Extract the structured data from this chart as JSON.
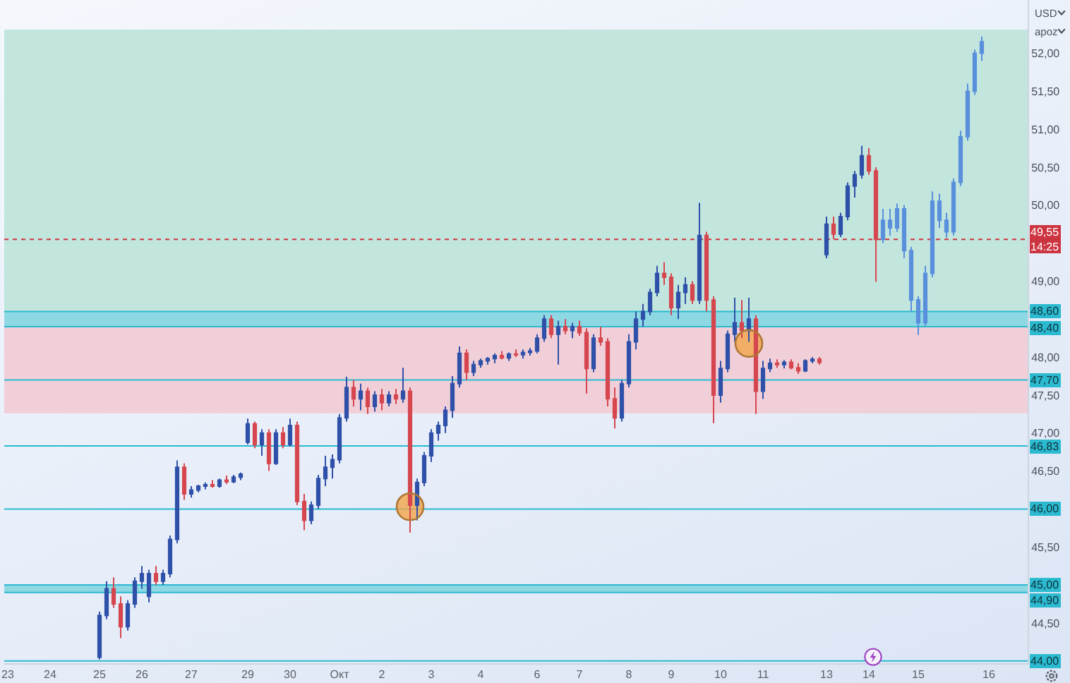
{
  "chart_data": {
    "type": "candlestick",
    "categories": [
      "23",
      null,
      null,
      null,
      null,
      null,
      "24",
      null,
      null,
      null,
      null,
      null,
      null,
      "25",
      null,
      null,
      null,
      null,
      null,
      "26",
      null,
      null,
      null,
      null,
      null,
      null,
      "27",
      null,
      null,
      null,
      null,
      null,
      null,
      null,
      "29",
      null,
      null,
      null,
      null,
      null,
      "30",
      null,
      null,
      null,
      null,
      null,
      null,
      "Окт",
      null,
      null,
      null,
      null,
      null,
      "2",
      null,
      null,
      null,
      null,
      null,
      null,
      "3",
      null,
      null,
      null,
      null,
      null,
      null,
      "4",
      null,
      null,
      null,
      null,
      null,
      null,
      null,
      "6",
      null,
      null,
      null,
      null,
      null,
      "7",
      null,
      null,
      null,
      null,
      null,
      null,
      "8",
      null,
      null,
      null,
      null,
      null,
      "9",
      null,
      null,
      null,
      null,
      null,
      null,
      "10",
      null,
      null,
      null,
      null,
      null,
      "11",
      null,
      null,
      null,
      null,
      null,
      null,
      null,
      null,
      "13",
      null,
      null,
      null,
      null,
      null,
      "14",
      null,
      null,
      null,
      null,
      null,
      null,
      "15",
      null,
      null,
      null,
      null,
      null,
      null,
      null,
      null,
      null,
      "16",
      null,
      null,
      null,
      null,
      null
    ],
    "ohlc": [
      null,
      null,
      null,
      null,
      null,
      null,
      null,
      null,
      null,
      null,
      null,
      null,
      null,
      [
        44.05,
        44.65,
        44.02,
        44.6
      ],
      [
        44.6,
        45.05,
        44.55,
        44.95
      ],
      [
        44.95,
        45.1,
        44.7,
        44.75
      ],
      [
        44.75,
        44.85,
        44.3,
        44.45
      ],
      [
        44.45,
        44.8,
        44.4,
        44.75
      ],
      [
        44.75,
        45.1,
        44.7,
        45.05
      ],
      [
        45.05,
        45.25,
        44.95,
        45.15
      ],
      [
        44.85,
        45.2,
        44.77,
        45.15
      ],
      [
        45.15,
        45.25,
        45.0,
        45.05
      ],
      [
        45.05,
        45.2,
        45.0,
        45.15
      ],
      [
        45.15,
        45.65,
        45.1,
        45.6
      ],
      [
        45.6,
        46.64,
        45.55,
        46.55
      ],
      [
        46.55,
        46.6,
        46.12,
        46.2
      ],
      [
        46.2,
        46.3,
        46.15,
        46.25
      ],
      [
        46.25,
        46.32,
        46.22,
        46.3
      ],
      [
        46.3,
        46.35,
        46.26,
        46.32
      ],
      [
        46.32,
        46.38,
        46.28,
        46.3
      ],
      [
        46.3,
        46.4,
        46.28,
        46.38
      ],
      [
        46.38,
        46.44,
        46.33,
        46.36
      ],
      [
        46.36,
        46.45,
        46.34,
        46.42
      ],
      [
        46.42,
        46.48,
        46.38,
        46.46
      ],
      [
        46.88,
        47.19,
        46.85,
        47.12
      ],
      [
        47.12,
        47.15,
        46.8,
        46.85
      ],
      [
        46.85,
        47.05,
        46.7,
        47.0
      ],
      [
        47.0,
        47.05,
        46.5,
        46.6
      ],
      [
        46.6,
        47.05,
        46.58,
        47.0
      ],
      [
        47.0,
        47.08,
        46.8,
        46.85
      ],
      [
        46.85,
        47.19,
        46.82,
        47.1
      ],
      [
        47.1,
        47.15,
        46.05,
        46.1
      ],
      [
        46.1,
        46.2,
        45.72,
        45.85
      ],
      [
        45.85,
        46.1,
        45.8,
        46.05
      ],
      [
        46.05,
        46.45,
        46.0,
        46.4
      ],
      [
        46.4,
        46.7,
        46.3,
        46.55
      ],
      [
        46.55,
        46.72,
        46.4,
        46.65
      ],
      [
        46.65,
        47.25,
        46.6,
        47.2
      ],
      [
        47.2,
        47.74,
        47.15,
        47.6
      ],
      [
        47.6,
        47.7,
        47.35,
        47.45
      ],
      [
        47.45,
        47.65,
        47.3,
        47.55
      ],
      [
        47.55,
        47.6,
        47.25,
        47.35
      ],
      [
        47.35,
        47.55,
        47.28,
        47.5
      ],
      [
        47.5,
        47.58,
        47.3,
        47.4
      ],
      [
        47.4,
        47.55,
        47.35,
        47.5
      ],
      [
        47.5,
        47.58,
        47.38,
        47.45
      ],
      [
        47.45,
        47.86,
        47.4,
        47.55
      ],
      [
        47.55,
        47.6,
        45.69,
        46.05
      ],
      [
        46.05,
        46.4,
        45.85,
        46.35
      ],
      [
        46.35,
        46.75,
        46.3,
        46.7
      ],
      [
        46.7,
        47.05,
        46.62,
        47.0
      ],
      [
        47.0,
        47.15,
        46.9,
        47.1
      ],
      [
        47.1,
        47.35,
        47.0,
        47.3
      ],
      [
        47.3,
        47.75,
        47.2,
        47.65
      ],
      [
        47.65,
        48.14,
        47.6,
        48.05
      ],
      [
        48.05,
        48.1,
        47.7,
        47.8
      ],
      [
        47.8,
        47.95,
        47.75,
        47.9
      ],
      [
        47.9,
        47.98,
        47.86,
        47.95
      ],
      [
        47.95,
        48.0,
        47.9,
        47.98
      ],
      [
        47.98,
        48.05,
        47.92,
        48.02
      ],
      [
        48.02,
        48.08,
        47.97,
        47.99
      ],
      [
        47.99,
        48.06,
        47.95,
        48.04
      ],
      [
        48.04,
        48.1,
        48.0,
        48.03
      ],
      [
        48.03,
        48.1,
        47.98,
        48.06
      ],
      [
        48.06,
        48.12,
        48.02,
        48.08
      ],
      [
        48.08,
        48.3,
        48.05,
        48.25
      ],
      [
        48.25,
        48.55,
        48.2,
        48.5
      ],
      [
        48.5,
        48.55,
        48.25,
        48.3
      ],
      [
        48.3,
        48.48,
        47.9,
        48.4
      ],
      [
        48.4,
        48.5,
        48.3,
        48.35
      ],
      [
        48.35,
        48.45,
        48.25,
        48.4
      ],
      [
        48.4,
        48.48,
        48.28,
        48.32
      ],
      [
        48.32,
        48.38,
        47.52,
        47.85
      ],
      [
        47.85,
        48.3,
        47.8,
        48.25
      ],
      [
        48.25,
        48.4,
        48.15,
        48.2
      ],
      [
        48.2,
        48.25,
        47.35,
        47.45
      ],
      [
        47.45,
        47.6,
        47.06,
        47.2
      ],
      [
        47.2,
        47.7,
        47.15,
        47.65
      ],
      [
        47.65,
        48.3,
        47.6,
        48.2
      ],
      [
        48.2,
        48.6,
        48.1,
        48.5
      ],
      [
        48.5,
        48.7,
        48.4,
        48.6
      ],
      [
        48.6,
        48.9,
        48.55,
        48.85
      ],
      [
        48.85,
        49.2,
        48.8,
        49.1
      ],
      [
        49.1,
        49.25,
        48.95,
        49.05
      ],
      [
        49.05,
        49.1,
        48.55,
        48.65
      ],
      [
        48.65,
        48.95,
        48.5,
        48.85
      ],
      [
        48.85,
        49.05,
        48.7,
        48.95
      ],
      [
        48.95,
        49.0,
        48.7,
        48.75
      ],
      [
        48.75,
        50.03,
        48.7,
        49.6
      ],
      [
        49.6,
        49.65,
        48.6,
        48.75
      ],
      [
        48.75,
        48.8,
        47.13,
        47.5
      ],
      [
        47.5,
        47.95,
        47.4,
        47.85
      ],
      [
        47.85,
        48.35,
        47.8,
        48.3
      ],
      [
        48.3,
        48.78,
        48.2,
        48.45
      ],
      [
        48.45,
        48.75,
        48.25,
        48.35
      ],
      [
        48.35,
        48.78,
        48.2,
        48.5
      ],
      [
        48.5,
        48.55,
        47.25,
        47.55
      ],
      [
        47.55,
        47.95,
        47.45,
        47.85
      ],
      [
        47.85,
        47.98,
        47.8,
        47.92
      ],
      [
        47.92,
        47.97,
        47.86,
        47.9
      ],
      [
        47.9,
        47.96,
        47.85,
        47.93
      ],
      [
        47.93,
        47.97,
        47.84,
        47.86
      ],
      [
        47.86,
        47.92,
        47.78,
        47.82
      ],
      [
        47.82,
        47.97,
        47.8,
        47.95
      ],
      [
        47.95,
        48.0,
        47.92,
        47.97
      ],
      [
        47.97,
        48.0,
        47.9,
        47.93
      ],
      [
        49.35,
        49.85,
        49.3,
        49.75
      ],
      [
        49.75,
        49.85,
        49.55,
        49.62
      ],
      [
        49.62,
        49.9,
        49.58,
        49.85
      ],
      [
        49.85,
        50.3,
        49.8,
        50.25
      ],
      [
        50.25,
        50.45,
        50.1,
        50.4
      ],
      [
        50.4,
        50.78,
        50.35,
        50.65
      ],
      [
        50.65,
        50.75,
        50.4,
        50.45
      ],
      [
        50.45,
        50.5,
        48.99,
        49.55
      ],
      [
        49.55,
        49.95,
        49.5,
        49.8
      ],
      [
        49.8,
        49.95,
        49.6,
        49.7
      ],
      [
        49.7,
        50.02,
        49.65,
        49.95
      ],
      [
        49.95,
        50.0,
        49.3,
        49.4
      ],
      [
        49.4,
        49.45,
        48.6,
        48.75
      ],
      [
        48.75,
        48.8,
        48.29,
        48.45
      ],
      [
        48.45,
        49.2,
        48.4,
        49.1
      ],
      [
        49.1,
        50.18,
        49.05,
        50.05
      ],
      [
        50.05,
        50.15,
        49.7,
        49.8
      ],
      [
        49.8,
        49.9,
        49.57,
        49.65
      ],
      [
        49.65,
        50.35,
        49.6,
        50.3
      ],
      [
        50.3,
        50.98,
        50.25,
        50.9
      ],
      [
        50.9,
        51.6,
        50.85,
        51.5
      ],
      [
        51.5,
        52.05,
        51.45,
        52.0
      ],
      [
        52.0,
        52.22,
        51.9,
        52.15
      ],
      null,
      null,
      null,
      null,
      null,
      null
    ],
    "colors": [
      null,
      null,
      null,
      null,
      null,
      null,
      null,
      null,
      null,
      null,
      null,
      null,
      null,
      "#2f50a8",
      "#2f50a8",
      "#d6464f",
      "#d6464f",
      "#2f50a8",
      "#2f50a8",
      "#2f50a8",
      "#2f50a8",
      "#d6464f",
      "#2f50a8",
      "#2f50a8",
      "#2f50a8",
      "#d6464f",
      "#2f50a8",
      "#2f50a8",
      "#2f50a8",
      "#d6464f",
      "#2f50a8",
      "#d6464f",
      "#2f50a8",
      "#2f50a8",
      "#2f50a8",
      "#d6464f",
      "#2f50a8",
      "#d6464f",
      "#2f50a8",
      "#d6464f",
      "#2f50a8",
      "#d6464f",
      "#d6464f",
      "#2f50a8",
      "#2f50a8",
      "#2f50a8",
      "#2f50a8",
      "#2f50a8",
      "#2f50a8",
      "#d6464f",
      "#2f50a8",
      "#d6464f",
      "#2f50a8",
      "#d6464f",
      "#2f50a8",
      "#d6464f",
      "#2f50a8",
      "#d6464f",
      "#2f50a8",
      "#2f50a8",
      "#2f50a8",
      "#2f50a8",
      "#2f50a8",
      "#2f50a8",
      "#2f50a8",
      "#d6464f",
      "#2f50a8",
      "#2f50a8",
      "#2f50a8",
      "#2f50a8",
      "#d6464f",
      "#2f50a8",
      "#d6464f",
      "#2f50a8",
      "#2f50a8",
      "#2f50a8",
      "#2f50a8",
      "#d6464f",
      "#2f50a8",
      "#d6464f",
      "#2f50a8",
      "#d6464f",
      "#d6464f",
      "#2f50a8",
      "#d6464f",
      "#d6464f",
      "#d6464f",
      "#2f50a8",
      "#2f50a8",
      "#2f50a8",
      "#2f50a8",
      "#2f50a8",
      "#2f50a8",
      "#d6464f",
      "#d6464f",
      "#2f50a8",
      "#2f50a8",
      "#d6464f",
      "#2f50a8",
      "#d6464f",
      "#d6464f",
      "#2f50a8",
      "#2f50a8",
      "#2f50a8",
      "#d6464f",
      "#2f50a8",
      "#d6464f",
      "#2f50a8",
      "#2f50a8",
      "#d6464f",
      "#2f50a8",
      "#d6464f",
      "#d6464f",
      "#2f50a8",
      "#2f50a8",
      "#d6464f",
      "#2f50a8",
      "#d6464f",
      "#2f50a8",
      "#2f50a8",
      "#2f50a8",
      "#2f50a8",
      "#d6464f",
      "#d6464f",
      "#5a8fdc",
      "#5a8fdc",
      "#5a8fdc",
      "#5a8fdc",
      "#5a8fdc",
      "#5a8fdc",
      "#5a8fdc",
      "#5a8fdc",
      "#5a8fdc",
      "#5a8fdc",
      "#5a8fdc",
      "#5a8fdc",
      "#5a8fdc",
      "#5a8fdc",
      "#5a8fdc",
      null,
      null,
      null,
      null,
      null,
      null
    ],
    "series": [
      {
        "type": "scatter",
        "color": "#f2a54a",
        "values": [
          null,
          null,
          null,
          null,
          null,
          null,
          null,
          null,
          null,
          null,
          null,
          null,
          null,
          null,
          null,
          null,
          null,
          null,
          null,
          null,
          null,
          null,
          null,
          null,
          null,
          null,
          null,
          null,
          null,
          null,
          null,
          null,
          null,
          null,
          null,
          null,
          null,
          null,
          null,
          null,
          null,
          null,
          null,
          null,
          null,
          null,
          null,
          null,
          null,
          null,
          null,
          null,
          null,
          null,
          null,
          null,
          null,
          46.03,
          null,
          null,
          null,
          null,
          null,
          null,
          null,
          null,
          null,
          null,
          null,
          null,
          null,
          null,
          null,
          null,
          null,
          null,
          null,
          null,
          null,
          null,
          null,
          null,
          null,
          null,
          null,
          null,
          null,
          null,
          null,
          null,
          null,
          null,
          null,
          null,
          null,
          null,
          null,
          null,
          null,
          null,
          null,
          null,
          null,
          null,
          null,
          48.18,
          null,
          null,
          null,
          null,
          null,
          null,
          null,
          null,
          null,
          null,
          null,
          null,
          null,
          null,
          null,
          null,
          null,
          null,
          null,
          null,
          null,
          null,
          null,
          null,
          null,
          null,
          null,
          null,
          null,
          null,
          null,
          null,
          null,
          null,
          null,
          null,
          null,
          null,
          null
        ]
      }
    ],
    "marker": "circle",
    "ylim": [
      43.97,
      52.7
    ],
    "yticks": [
      {
        "value": 44.5,
        "label": "44,50"
      },
      {
        "value": 45.5,
        "label": "45,50"
      },
      {
        "value": 46.5,
        "label": "46,50"
      },
      {
        "value": 47,
        "label": "47,00"
      },
      {
        "value": 47.5,
        "label": "47,50"
      },
      {
        "value": 48,
        "label": "48,00"
      },
      {
        "value": 49,
        "label": "49,00"
      },
      {
        "value": 50,
        "label": "50,00"
      },
      {
        "value": 50.5,
        "label": "50,50"
      },
      {
        "value": 51,
        "label": "51,00"
      },
      {
        "value": 51.5,
        "label": "51,50"
      },
      {
        "value": 52,
        "label": "52,00"
      }
    ],
    "bands": [
      {
        "axis": "y",
        "from": 48.4,
        "to": 52.31,
        "color": "#c2e6de"
      },
      {
        "axis": "y",
        "from": 47.26,
        "to": 48.4,
        "color": "#f0cfd8"
      },
      {
        "axis": "y",
        "from": 48.4,
        "to": 48.6,
        "color": "#8ed8e4"
      },
      {
        "axis": "y",
        "from": 44.9,
        "to": 45.0,
        "color": "#8ed8e4"
      }
    ],
    "ref_lines": [
      {
        "axis": "y",
        "value": 48.6,
        "label": "48,60",
        "color": "#2bbad0"
      },
      {
        "axis": "y",
        "value": 48.4,
        "label": "48,40",
        "color": "#2bbad0"
      },
      {
        "axis": "y",
        "value": 47.7,
        "label": "47,70",
        "color": "#2bbad0"
      },
      {
        "axis": "y",
        "value": 46.83,
        "label": "46,83",
        "color": "#2bbad0"
      },
      {
        "axis": "y",
        "value": 46.0,
        "label": "46,00",
        "color": "#2bbad0"
      },
      {
        "axis": "y",
        "value": 45.0,
        "label": "45,00",
        "color": "#2bbad0"
      },
      {
        "axis": "y",
        "value": 44.9,
        "label": "44,90",
        "color": "#2bbad0"
      },
      {
        "axis": "y",
        "value": 44.0,
        "label": "44,00",
        "color": "#2bbad0"
      },
      {
        "axis": "y",
        "value": 49.55,
        "label": "49,55\n14:25",
        "color": "#cc3440",
        "line_style": "dotted"
      }
    ],
    "annotations": [
      "USD",
      "apoz"
    ]
  }
}
